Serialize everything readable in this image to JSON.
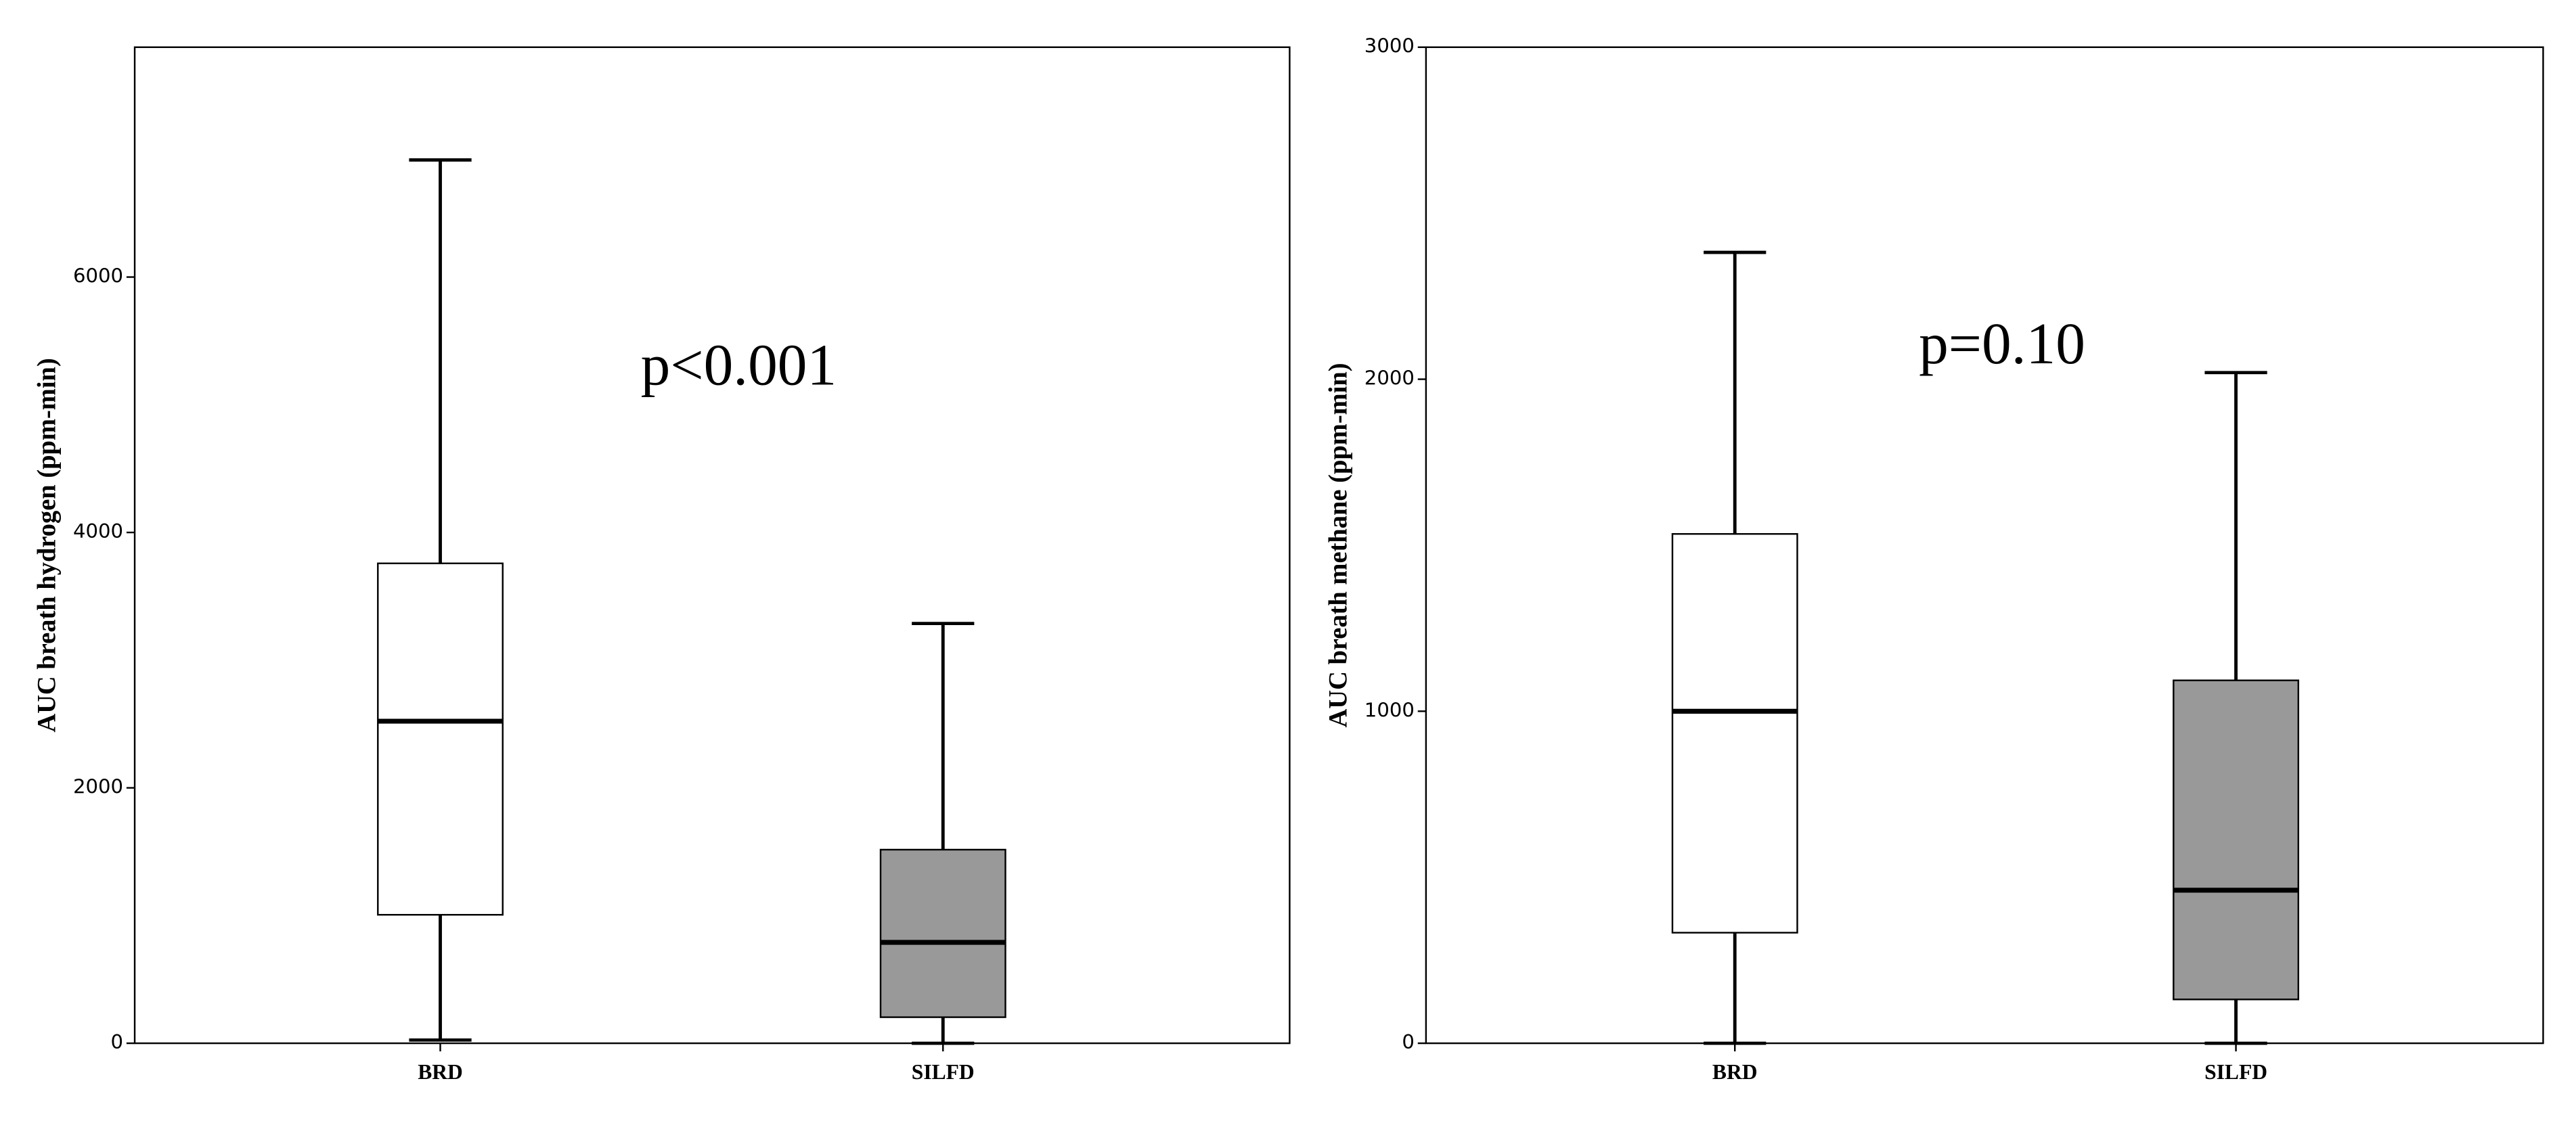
{
  "chart_data": [
    {
      "type": "box",
      "y_label": "AUC breath hydrogen (ppm-min)",
      "annotation": "p<0.001",
      "categories": [
        "BRD",
        "SILFD"
      ],
      "boxes": [
        {
          "min": 25,
          "q1": 1006,
          "median": 2522,
          "q3": 3758,
          "max": 6917,
          "color": "#ffffff"
        },
        {
          "min": 0,
          "q1": 204,
          "median": 790,
          "q3": 1516,
          "max": 3287,
          "color": "#999999"
        }
      ],
      "ylim": [
        0,
        7800
      ],
      "yticks": [
        0,
        2000,
        4000,
        6000
      ]
    },
    {
      "type": "box",
      "y_label": "AUC breath methane (ppm-min)",
      "annotation": "p=0.10",
      "categories": [
        "BRD",
        "SILFD"
      ],
      "boxes": [
        {
          "min": 0,
          "q1": 333,
          "median": 1000,
          "q3": 1534,
          "max": 2382,
          "color": "#ffffff"
        },
        {
          "min": 0,
          "q1": 132,
          "median": 461,
          "q3": 1093,
          "max": 2020,
          "color": "#999999"
        }
      ],
      "ylim": [
        0,
        3000
      ],
      "yticks": [
        0,
        1000,
        2000,
        3000
      ]
    }
  ]
}
